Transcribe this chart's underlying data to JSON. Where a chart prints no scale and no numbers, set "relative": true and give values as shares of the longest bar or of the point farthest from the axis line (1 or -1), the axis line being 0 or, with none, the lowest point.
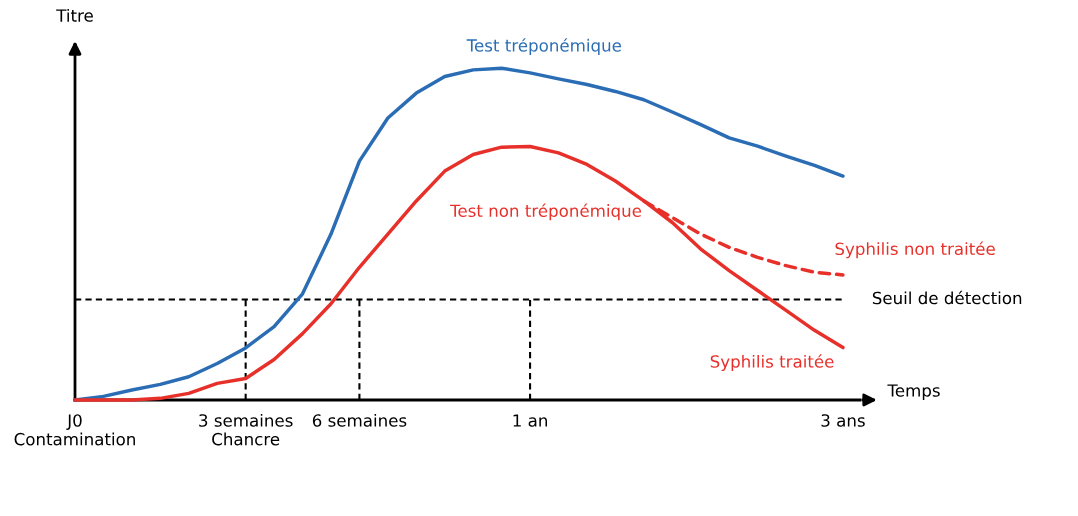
{
  "chart_data": {
    "type": "line",
    "relative": true,
    "xlabel": "Temps",
    "ylabel": "Titre",
    "categories": [
      "J0\nContamination",
      null,
      null,
      null,
      null,
      null,
      "3 semaines\nChancre",
      null,
      null,
      null,
      "6 semaines",
      null,
      null,
      null,
      null,
      null,
      "1 an",
      null,
      null,
      null,
      null,
      null,
      null,
      null,
      null,
      null,
      null,
      "3 ans"
    ],
    "series": [
      {
        "name": "Test tréponémique",
        "color": "#2a6db5",
        "line_style": "solid",
        "values": [
          0,
          0.011,
          0.03,
          0.047,
          0.07,
          0.11,
          0.157,
          0.221,
          0.32,
          0.5,
          0.72,
          0.85,
          0.925,
          0.975,
          0.995,
          1,
          0.986,
          0.968,
          0.951,
          0.93,
          0.905,
          0.868,
          0.83,
          0.79,
          0.765,
          0.735,
          0.707,
          0.675
        ]
      },
      {
        "name": "Syphilis traitée",
        "color": "#e8302a",
        "line_style": "solid",
        "values": [
          0,
          0,
          0,
          0.005,
          0.02,
          0.05,
          0.065,
          0.122,
          0.2,
          0.29,
          0.4,
          0.5,
          0.6,
          0.69,
          0.74,
          0.762,
          0.764,
          0.745,
          0.71,
          0.66,
          0.6,
          0.535,
          0.455,
          0.39,
          0.33,
          0.27,
          0.21,
          0.158
        ]
      },
      {
        "name": "Syphilis non traitée",
        "color": "#e8302a",
        "line_style": "dashed",
        "values": [
          null,
          null,
          null,
          null,
          null,
          null,
          null,
          null,
          null,
          null,
          null,
          null,
          null,
          null,
          null,
          null,
          null,
          null,
          null,
          null,
          0.6,
          0.55,
          0.5,
          0.46,
          0.43,
          0.405,
          0.385,
          0.377
        ]
      }
    ],
    "ref_lines": [
      {
        "axis": "y",
        "value": 0.303,
        "label": "Seuil de détection",
        "color": "#000000",
        "line_style": "dashed"
      },
      {
        "axis": "x",
        "value": "3 semaines\nChancre",
        "color": "#000000",
        "line_style": "dashed"
      },
      {
        "axis": "x",
        "value": "6 semaines",
        "color": "#000000",
        "line_style": "dashed"
      },
      {
        "axis": "x",
        "value": "1 an",
        "color": "#000000",
        "line_style": "dashed"
      }
    ],
    "annotations": [
      "Test non tréponémique"
    ],
    "grid": false,
    "legend": false
  }
}
